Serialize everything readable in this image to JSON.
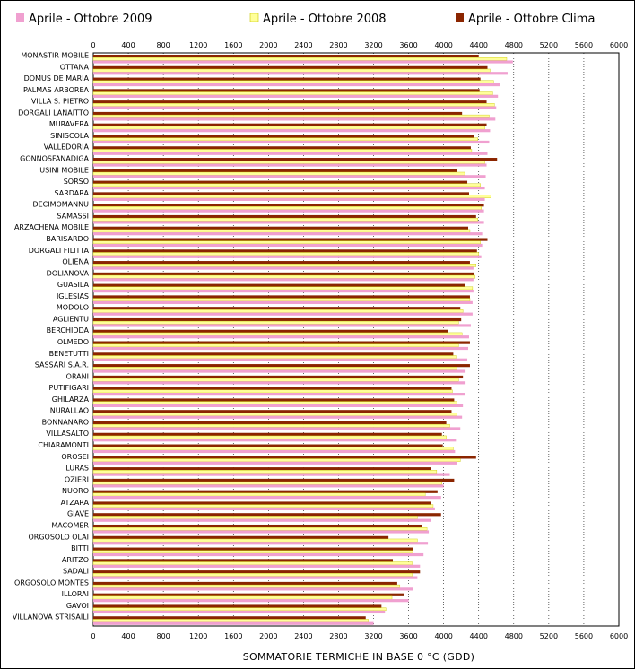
{
  "chart_data": {
    "type": "bar",
    "orientation": "horizontal",
    "xlabel": "SOMMATORIE TERMICHE IN BASE 0 °C (GDD)",
    "xlim": [
      0,
      6000
    ],
    "xticks": [
      0,
      400,
      800,
      1200,
      1600,
      2000,
      2400,
      2800,
      3200,
      3600,
      4000,
      4400,
      4800,
      5200,
      5600,
      6000
    ],
    "grid": true,
    "legend": "top",
    "categories": [
      "MONASTIR MOBILE",
      "OTTANA",
      "DOMUS DE MARIA",
      "PALMAS ARBOREA",
      "VILLA S. PIETRO",
      "DORGALI LANAITTO",
      "MURAVERA",
      "SINISCOLA",
      "VALLEDORIA",
      "GONNOSFANADIGA",
      "USINI MOBILE",
      "SORSO",
      "SARDARA",
      "DECIMOMANNU",
      "SAMASSI",
      "ARZACHENA MOBILE",
      "BARISARDO",
      "DORGALI FILITTA",
      "OLIENA",
      "DOLIANOVA",
      "GUASILA",
      "IGLESIAS",
      "MODOLO",
      "AGLIENTU",
      "BERCHIDDA",
      "OLMEDO",
      "BENETUTTI",
      "SASSARI S.A.R.",
      "ORANI",
      "PUTIFIGARI",
      "GHILARZA",
      "NURALLAO",
      "BONNANARO",
      "VILLASALTO",
      "CHIARAMONTI",
      "OROSEI",
      "LURAS",
      "OZIERI",
      "NUORO",
      "ATZARA",
      "GIAVE",
      "MACOMER",
      "ORGOSOLO OLAI",
      "BITTI",
      "ARITZO",
      "SADALI",
      "ORGOSOLO MONTES",
      "ILLORAI",
      "GAVOI",
      "VILLANOVA STRISAILI"
    ],
    "series": [
      {
        "name": "Aprile - Ottobre 2009",
        "color": "#f0a0d0",
        "values": [
          4790,
          4730,
          4640,
          4620,
          4600,
          4590,
          4530,
          4520,
          4500,
          4490,
          4480,
          4470,
          4470,
          4460,
          4460,
          4440,
          4440,
          4430,
          4340,
          4340,
          4340,
          4330,
          4330,
          4310,
          4290,
          4280,
          4270,
          4250,
          4250,
          4240,
          4220,
          4210,
          4190,
          4140,
          4130,
          4150,
          4070,
          4000,
          3970,
          3900,
          3860,
          3830,
          3820,
          3770,
          3730,
          3700,
          3650,
          3600,
          3330,
          3200
        ]
      },
      {
        "name": "Aprile - Ottobre 2008",
        "color": "#ffff99",
        "values": [
          4720,
          4530,
          4570,
          4560,
          4580,
          4520,
          4470,
          4390,
          4320,
          4470,
          4240,
          4420,
          4540,
          4430,
          4390,
          4300,
          4420,
          4400,
          4370,
          4360,
          4330,
          4300,
          4220,
          4170,
          4210,
          4170,
          4140,
          4150,
          4170,
          4100,
          4150,
          4150,
          4070,
          4030,
          4110,
          4190,
          3920,
          3980,
          3790,
          3880,
          3700,
          3810,
          3700,
          3650,
          3640,
          3640,
          3500,
          3410,
          3340,
          3140
        ]
      },
      {
        "name": "Aprile - Ottobre Clima",
        "color": "#8b2500",
        "values": [
          4400,
          4500,
          4420,
          4410,
          4490,
          4210,
          4490,
          4350,
          4310,
          4610,
          4150,
          4270,
          4290,
          4460,
          4370,
          4280,
          4500,
          4380,
          4300,
          4350,
          4240,
          4300,
          4190,
          4200,
          4050,
          4300,
          4110,
          4300,
          4220,
          4090,
          4120,
          4090,
          4030,
          3980,
          3990,
          4370,
          3860,
          4120,
          3930,
          3850,
          3970,
          3750,
          3370,
          3650,
          3420,
          3730,
          3470,
          3550,
          3290,
          3110
        ]
      }
    ]
  }
}
